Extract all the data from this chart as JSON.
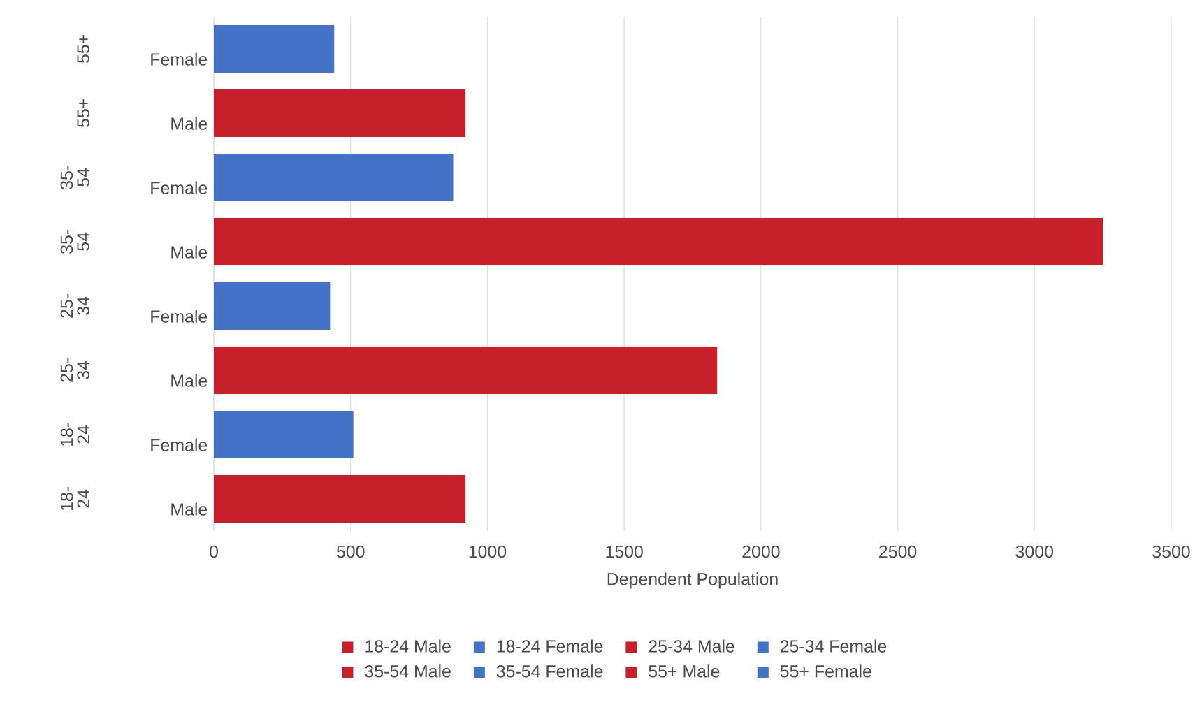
{
  "chart_data": {
    "type": "bar",
    "orientation": "horizontal",
    "xlabel": "Dependent  Population",
    "categories": [
      "Female",
      "Male",
      "Female",
      "Male",
      "Female",
      "Male",
      "Female",
      "Male"
    ],
    "annotations": [
      "55+",
      "55+",
      "35-54",
      "35-54",
      "25-34",
      "25-34",
      "18-24",
      "18-24"
    ],
    "series": [
      {
        "name": "18-24 Male",
        "color": "#c8202a",
        "values": [
          null,
          null,
          null,
          null,
          null,
          null,
          null,
          920
        ]
      },
      {
        "name": "18-24 Female",
        "color": "#4472c4",
        "values": [
          null,
          null,
          null,
          null,
          null,
          null,
          510,
          null
        ]
      },
      {
        "name": "25-34 Male",
        "color": "#c8202a",
        "values": [
          null,
          null,
          null,
          null,
          null,
          1840,
          null,
          null
        ]
      },
      {
        "name": "25-34 Female",
        "color": "#4472c4",
        "values": [
          null,
          null,
          null,
          null,
          425,
          null,
          null,
          null
        ]
      },
      {
        "name": "35-54 Male",
        "color": "#c8202a",
        "values": [
          null,
          null,
          null,
          3250,
          null,
          null,
          null,
          null
        ]
      },
      {
        "name": "35-54 Female",
        "color": "#4472c4",
        "values": [
          null,
          null,
          875,
          null,
          null,
          null,
          null,
          null
        ]
      },
      {
        "name": "55+ Male",
        "color": "#c8202a",
        "values": [
          null,
          920,
          null,
          null,
          null,
          null,
          null,
          null
        ]
      },
      {
        "name": "55+ Female",
        "color": "#4472c4",
        "values": [
          440,
          null,
          null,
          null,
          null,
          null,
          null,
          null
        ]
      }
    ],
    "xlim": [
      0,
      3500
    ],
    "xticks": [
      0,
      500,
      1000,
      1500,
      2000,
      2500,
      3000,
      3500
    ],
    "grid": "x",
    "legend": "bottom"
  }
}
